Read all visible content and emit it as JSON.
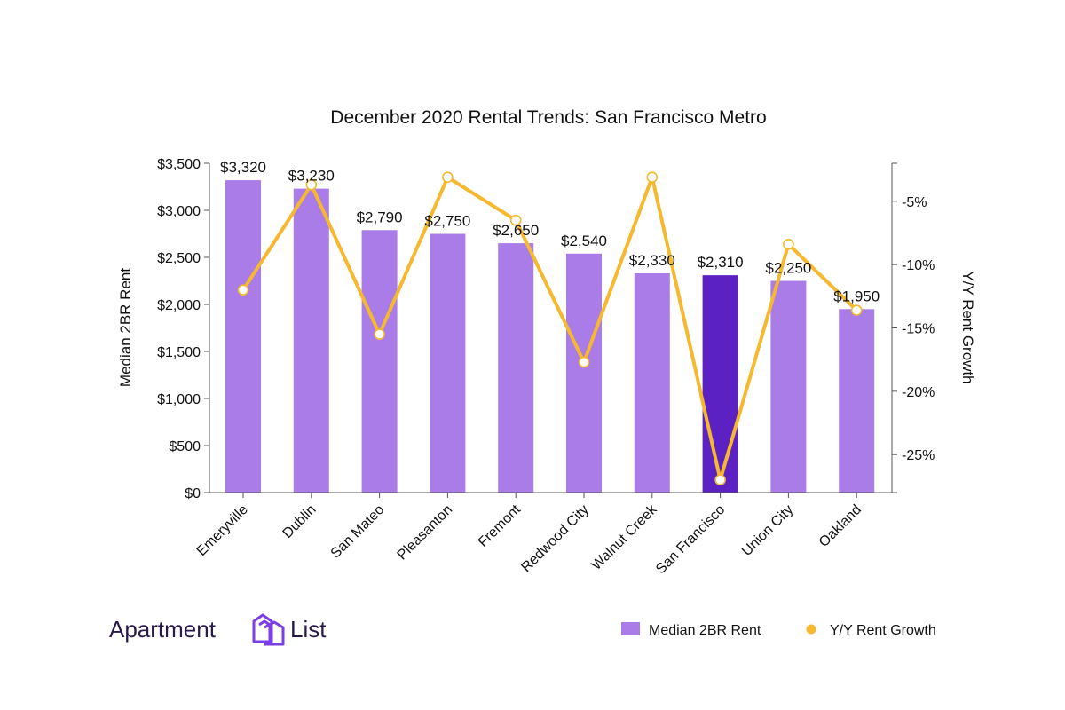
{
  "chart_data": {
    "type": "bar",
    "title": "December 2020 Rental Trends: San Francisco Metro",
    "categories": [
      "Emeryville",
      "Dublin",
      "San Mateo",
      "Pleasanton",
      "Fremont",
      "Redwood City",
      "Walnut Creek",
      "San Francisco",
      "Union City",
      "Oakland"
    ],
    "series": [
      {
        "name": "Median 2BR Rent",
        "type": "bar",
        "axis": "left",
        "values": [
          3320,
          3230,
          2790,
          2750,
          2650,
          2540,
          2330,
          2310,
          2250,
          1950
        ],
        "data_labels": [
          "$3,320",
          "$3,230",
          "$2,790",
          "$2,750",
          "$2,650",
          "$2,540",
          "$2,330",
          "$2,310",
          "$2,250",
          "$1,950"
        ],
        "color": "#a97ce8",
        "highlight_color": "#5b21c2",
        "highlight_category": "San Francisco"
      },
      {
        "name": "Y/Y Rent Growth",
        "type": "line",
        "axis": "right",
        "values": [
          -12.0,
          -3.7,
          -15.5,
          -3.1,
          -6.5,
          -17.7,
          -3.1,
          -27.0,
          -8.4,
          -13.6
        ],
        "color": "#f5b82e"
      }
    ],
    "y_left": {
      "label": "Median 2BR Rent",
      "range": [
        0,
        3500
      ],
      "ticks": [
        0,
        500,
        1000,
        1500,
        2000,
        2500,
        3000,
        3500
      ],
      "tick_labels": [
        "$0",
        "$500",
        "$1,000",
        "$1,500",
        "$2,000",
        "$2,500",
        "$3,000",
        "$3,500"
      ]
    },
    "y_right": {
      "label": "Y/Y Rent Growth",
      "range": [
        -28,
        -2
      ],
      "ticks": [
        -5,
        -10,
        -15,
        -20,
        -25
      ],
      "tick_labels": [
        "-5%",
        "-10%",
        "-15%",
        "-20%",
        "-25%"
      ]
    },
    "grid": false,
    "legend": {
      "placement": "bottom-right",
      "entries": [
        "Median 2BR Rent",
        "Y/Y Rent Growth"
      ]
    }
  },
  "brand": {
    "name_left": "Apartment",
    "name_right": "List",
    "logo_icon": "apartment-list-logo-icon",
    "color": "#2a1a4a",
    "accent": "#7b3fe4"
  }
}
